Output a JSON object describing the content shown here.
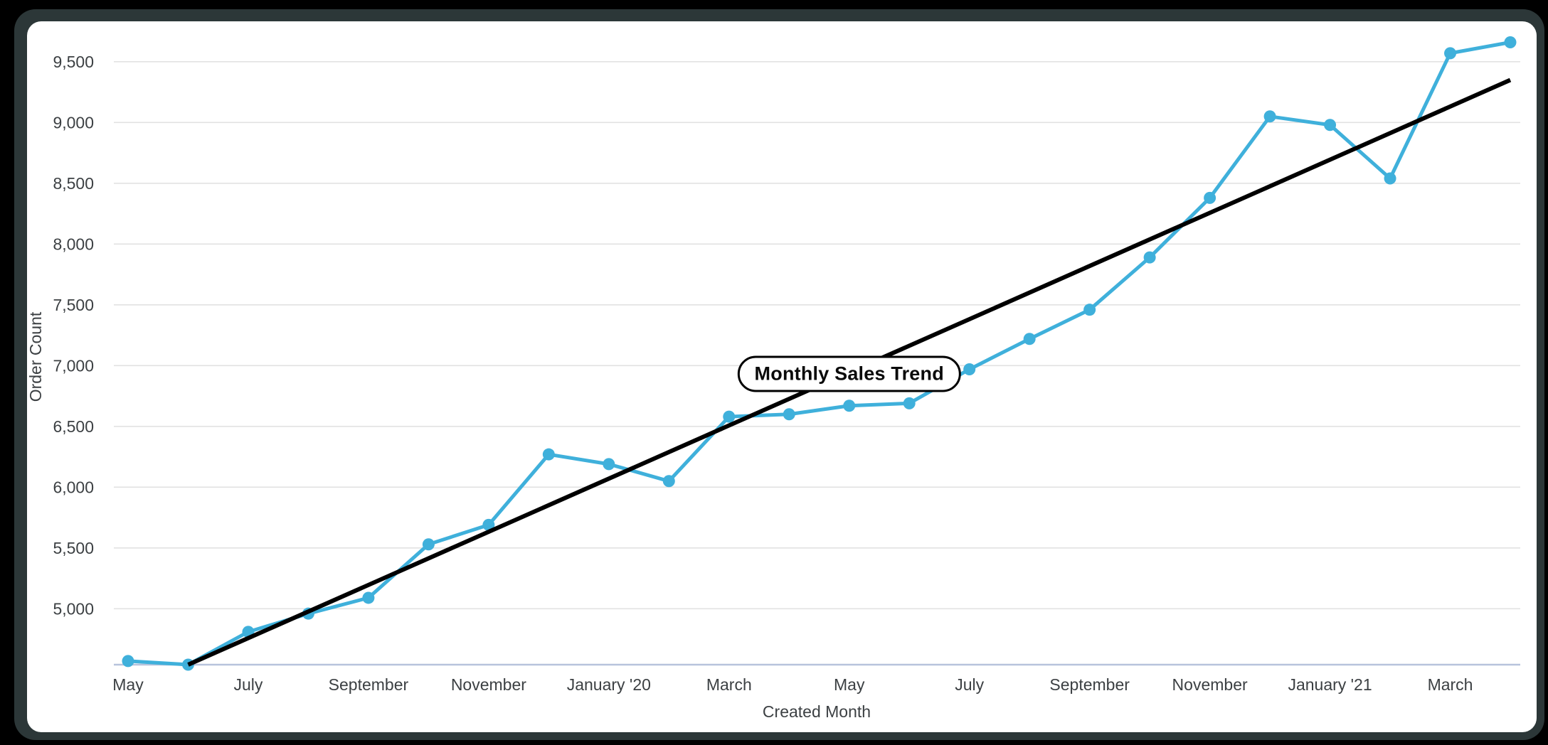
{
  "window": {
    "outer_background": "#000000",
    "frame_color": "#2c3738",
    "card_color": "#ffffff"
  },
  "annotation": {
    "text": "Monthly Sales Trend",
    "x_index": 12,
    "value": 6930
  },
  "axes": {
    "y_title": "Order Count",
    "x_title": "Created Month"
  },
  "chart_data": {
    "type": "line",
    "title": "Monthly Sales Trend",
    "xlabel": "Created Month",
    "ylabel": "Order Count",
    "x": [
      "May '19",
      "June '19",
      "July '19",
      "August '19",
      "September '19",
      "October '19",
      "November '19",
      "December '19",
      "January '20",
      "February '20",
      "March '20",
      "April '20",
      "May '20",
      "June '20",
      "July '20",
      "August '20",
      "September '20",
      "October '20",
      "November '20",
      "December '20",
      "January '21",
      "February '21",
      "March '21",
      "April '21"
    ],
    "series": [
      {
        "name": "Order Count",
        "kind": "line",
        "color": "#3fb0db",
        "values": [
          4570,
          4540,
          4810,
          4960,
          5090,
          5530,
          5690,
          6270,
          6190,
          6050,
          6580,
          6600,
          6670,
          6690,
          6970,
          7220,
          7460,
          7890,
          8380,
          9050,
          8980,
          8540,
          9570,
          9660
        ]
      },
      {
        "name": "Linear trendline",
        "kind": "trend",
        "color": "#000000",
        "start": {
          "x_index": 1,
          "value": 4540
        },
        "end": {
          "x_index": 23,
          "value": 9350
        }
      }
    ],
    "x_tick_indices": [
      0,
      2,
      4,
      6,
      8,
      10,
      12,
      14,
      16,
      18,
      20,
      22
    ],
    "x_tick_labels": [
      "May",
      "July",
      "September",
      "November",
      "January '20",
      "March",
      "May",
      "July",
      "September",
      "November",
      "January '21",
      "March"
    ],
    "y_ticks": [
      5000,
      5500,
      6000,
      6500,
      7000,
      7500,
      8000,
      8500,
      9000,
      9500
    ],
    "y_tick_labels": [
      "5,000",
      "5,500",
      "6,000",
      "6,500",
      "7,000",
      "7,500",
      "8,000",
      "8,500",
      "9,000",
      "9,500"
    ],
    "ylim": [
      4540,
      9830
    ],
    "grid": true,
    "legend_position": "none"
  },
  "styles": {
    "axis_text_color": "#3c4043",
    "axis_font_size": 23,
    "gridline_color": "#e2e2e2",
    "baseline_color": "#b7c3dc",
    "point_radius": 8.5,
    "line_width": 5,
    "trend_width": 6
  }
}
